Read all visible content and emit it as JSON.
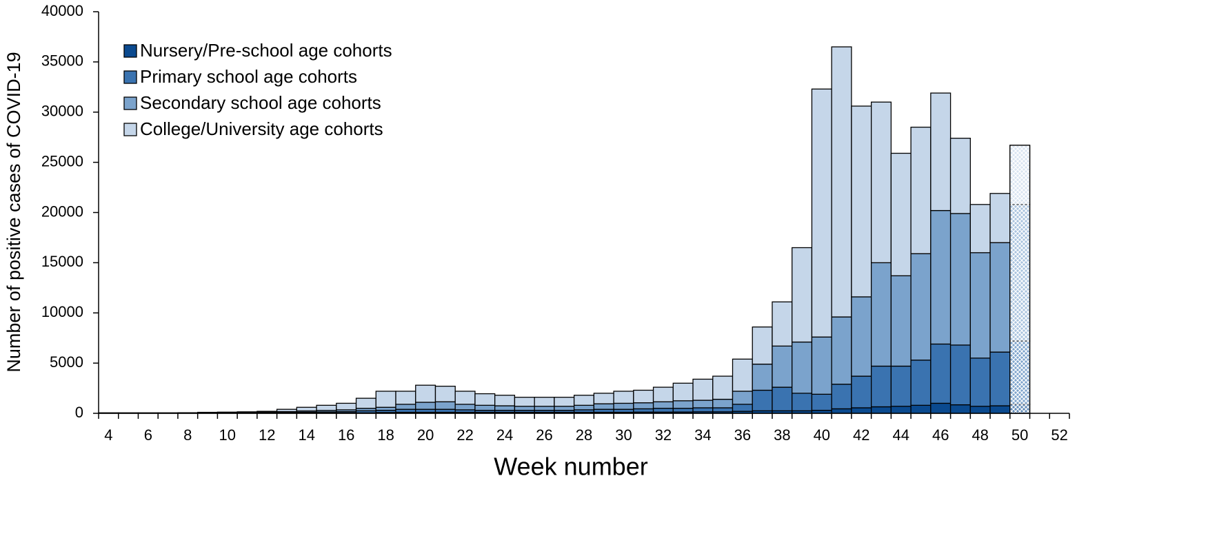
{
  "chart_data": {
    "type": "stacked_bar",
    "x_label": "Week number",
    "y_label": "Number of positive cases of COVID-19",
    "categories": [
      "4",
      null,
      "6",
      null,
      "8",
      null,
      "10",
      null,
      "12",
      null,
      "14",
      null,
      "16",
      null,
      "18",
      null,
      "20",
      null,
      "22",
      null,
      "24",
      null,
      "26",
      null,
      "28",
      null,
      "30",
      null,
      "32",
      null,
      "34",
      null,
      "36",
      null,
      "38",
      null,
      "40",
      null,
      "42",
      null,
      "44",
      null,
      "46",
      null,
      "48",
      null,
      "50",
      null,
      "52"
    ],
    "series": [
      {
        "name": "Nursery/Pre-school age cohorts",
        "color": "#0b4a8f",
        "values": [
          10,
          10,
          10,
          10,
          10,
          15,
          15,
          20,
          20,
          30,
          40,
          40,
          50,
          50,
          80,
          100,
          100,
          100,
          100,
          100,
          100,
          100,
          100,
          100,
          100,
          100,
          100,
          120,
          120,
          130,
          150,
          150,
          200,
          250,
          250,
          250,
          300,
          450,
          550,
          650,
          700,
          800,
          1000,
          850,
          700,
          750,
          900,
          null,
          null
        ]
      },
      {
        "name": "Primary school age cohorts",
        "color": "#3a73b0",
        "values": [
          10,
          10,
          10,
          10,
          10,
          20,
          25,
          30,
          40,
          60,
          80,
          100,
          120,
          200,
          220,
          300,
          300,
          300,
          250,
          200,
          200,
          200,
          200,
          200,
          250,
          300,
          300,
          330,
          380,
          370,
          400,
          400,
          700,
          2050,
          2350,
          1750,
          1600,
          2450,
          3150,
          4050,
          4000,
          4500,
          5900,
          5950,
          4800,
          5350,
          6300,
          null,
          null
        ]
      },
      {
        "name": "Secondary school age cohorts",
        "color": "#7ba3cc",
        "values": [
          10,
          10,
          10,
          10,
          15,
          25,
          30,
          40,
          50,
          80,
          120,
          150,
          180,
          250,
          300,
          500,
          700,
          750,
          550,
          500,
          450,
          400,
          400,
          400,
          450,
          550,
          600,
          600,
          650,
          750,
          750,
          850,
          1300,
          2600,
          4100,
          5100,
          5700,
          6700,
          7900,
          10300,
          9000,
          10600,
          13300,
          13100,
          10500,
          10900,
          13600,
          null,
          null
        ]
      },
      {
        "name": "College/University age cohorts",
        "color": "#c5d6e9",
        "values": [
          20,
          20,
          20,
          20,
          25,
          40,
          50,
          60,
          90,
          230,
          360,
          510,
          650,
          1000,
          1600,
          1300,
          1700,
          1550,
          1300,
          1150,
          1050,
          900,
          900,
          900,
          1000,
          1050,
          1200,
          1250,
          1450,
          1750,
          2100,
          2300,
          3200,
          3700,
          4400,
          9400,
          24700,
          26900,
          19000,
          16000,
          12200,
          12600,
          11700,
          7500,
          4800,
          4900,
          5900,
          null,
          null
        ]
      }
    ],
    "ylim": [
      0,
      40000
    ],
    "yticks": [
      0,
      5000,
      10000,
      15000,
      20000,
      25000,
      30000,
      35000,
      40000
    ],
    "hatch_last_bar": true,
    "legend": "top-left"
  }
}
